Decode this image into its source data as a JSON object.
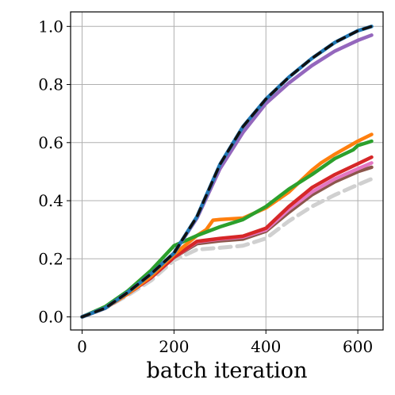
{
  "chart_data": {
    "type": "line",
    "title": "",
    "xlabel": "batch iteration",
    "ylabel": "",
    "xlim": [
      -25,
      655
    ],
    "ylim": [
      -0.045,
      1.05
    ],
    "x_ticks": [
      0,
      200,
      400,
      600
    ],
    "y_ticks": [
      0.0,
      0.2,
      0.4,
      0.6,
      0.8,
      1.0
    ],
    "x_tick_labels": [
      "0",
      "200",
      "400",
      "600"
    ],
    "y_tick_labels": [
      "0.0",
      "0.2",
      "0.4",
      "0.6",
      "0.8",
      "1.0"
    ],
    "grid": true,
    "legend": "none",
    "series": [
      {
        "color": "#d0d0d0",
        "style": "dashed",
        "x": [
          0,
          50,
          100,
          150,
          200,
          250,
          300,
          350,
          400,
          450,
          500,
          550,
          600,
          630
        ],
        "y": [
          0.0,
          0.03,
          0.075,
          0.125,
          0.195,
          0.232,
          0.238,
          0.245,
          0.27,
          0.33,
          0.38,
          0.42,
          0.455,
          0.475
        ]
      },
      {
        "color": "#8c564b",
        "style": "solid",
        "x": [
          0,
          50,
          100,
          150,
          200,
          250,
          300,
          350,
          400,
          450,
          500,
          550,
          600,
          630
        ],
        "y": [
          0.0,
          0.03,
          0.08,
          0.135,
          0.205,
          0.252,
          0.262,
          0.268,
          0.295,
          0.36,
          0.42,
          0.465,
          0.5,
          0.515
        ]
      },
      {
        "color": "#e377c2",
        "style": "solid",
        "x": [
          0,
          50,
          100,
          150,
          200,
          250,
          300,
          350,
          400,
          450,
          500,
          550,
          600,
          630
        ],
        "y": [
          0.0,
          0.03,
          0.08,
          0.135,
          0.205,
          0.258,
          0.268,
          0.275,
          0.3,
          0.37,
          0.43,
          0.475,
          0.51,
          0.53
        ]
      },
      {
        "color": "#d62728",
        "style": "solid",
        "x": [
          0,
          50,
          100,
          150,
          200,
          250,
          300,
          350,
          400,
          450,
          500,
          550,
          600,
          630
        ],
        "y": [
          0.0,
          0.03,
          0.08,
          0.135,
          0.205,
          0.26,
          0.27,
          0.278,
          0.305,
          0.38,
          0.445,
          0.49,
          0.527,
          0.55
        ]
      },
      {
        "color": "#ff7f0e",
        "style": "solid",
        "x": [
          0,
          50,
          100,
          150,
          200,
          250,
          270,
          285,
          300,
          350,
          400,
          450,
          500,
          520,
          550,
          600,
          630
        ],
        "y": [
          0.0,
          0.03,
          0.08,
          0.14,
          0.215,
          0.28,
          0.3,
          0.333,
          0.335,
          0.34,
          0.375,
          0.43,
          0.505,
          0.53,
          0.56,
          0.605,
          0.628
        ]
      },
      {
        "color": "#2ca02c",
        "style": "solid",
        "x": [
          0,
          50,
          100,
          150,
          200,
          250,
          300,
          350,
          400,
          450,
          500,
          550,
          590,
          600,
          630
        ],
        "y": [
          0.0,
          0.035,
          0.09,
          0.16,
          0.245,
          0.28,
          0.31,
          0.335,
          0.38,
          0.44,
          0.49,
          0.545,
          0.575,
          0.59,
          0.605
        ]
      },
      {
        "color": "#9467bd",
        "style": "solid",
        "x": [
          0,
          50,
          100,
          150,
          200,
          250,
          300,
          350,
          400,
          450,
          500,
          550,
          600,
          630
        ],
        "y": [
          0.0,
          0.03,
          0.085,
          0.148,
          0.22,
          0.34,
          0.51,
          0.635,
          0.735,
          0.805,
          0.865,
          0.915,
          0.952,
          0.97
        ]
      },
      {
        "color": "#1f77b4",
        "style": "solid",
        "x": [
          0,
          50,
          100,
          150,
          200,
          250,
          300,
          350,
          400,
          450,
          500,
          550,
          600,
          630
        ],
        "y": [
          0.0,
          0.03,
          0.085,
          0.148,
          0.22,
          0.345,
          0.525,
          0.655,
          0.75,
          0.825,
          0.89,
          0.945,
          0.985,
          1.0
        ]
      },
      {
        "color": "#111111",
        "style": "dashed-black",
        "x": [
          0,
          50,
          100,
          150,
          200,
          250,
          300,
          350,
          400,
          450,
          500,
          550,
          600,
          630
        ],
        "y": [
          0.0,
          0.03,
          0.085,
          0.148,
          0.22,
          0.345,
          0.525,
          0.655,
          0.75,
          0.825,
          0.89,
          0.945,
          0.985,
          1.0
        ]
      }
    ]
  }
}
